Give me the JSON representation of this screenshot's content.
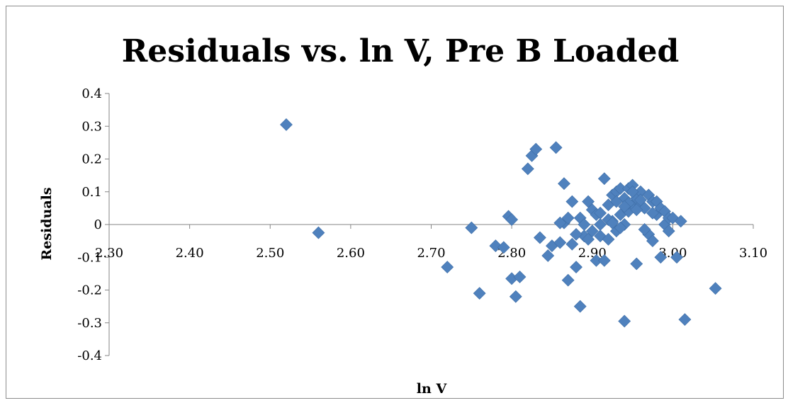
{
  "chart_data": {
    "type": "scatter",
    "title": "Residuals vs. ln V, Pre B Loaded",
    "xlabel": "ln V",
    "ylabel": "Residuals",
    "xlim": [
      2.3,
      3.1
    ],
    "ylim": [
      -0.4,
      0.4
    ],
    "x_ticks": [
      "2.30",
      "2.40",
      "2.50",
      "2.60",
      "2.70",
      "2.80",
      "2.90",
      "3.00",
      "3.10"
    ],
    "y_ticks": [
      "0.4",
      "0.3",
      "0.2",
      "0.1",
      "0",
      "-0.1",
      "-0.2",
      "-0.3",
      "-0.4"
    ],
    "grid": false,
    "legend": "none",
    "marker": "diamond",
    "marker_color": "#4f81bd",
    "series": [
      {
        "x": [
          2.52,
          2.56,
          2.72,
          2.75,
          2.76,
          2.78,
          2.79,
          2.796,
          2.8,
          2.8,
          2.81,
          2.805,
          2.82,
          2.825,
          2.83,
          2.835,
          2.845,
          2.85,
          2.855,
          2.86,
          2.865,
          2.865,
          2.87,
          2.87,
          2.875,
          2.875,
          2.88,
          2.885,
          2.885,
          2.89,
          2.89,
          2.895,
          2.895,
          2.9,
          2.9,
          2.905,
          2.905,
          2.91,
          2.91,
          2.915,
          2.915,
          2.92,
          2.92,
          2.925,
          2.925,
          2.93,
          2.93,
          2.935,
          2.935,
          2.94,
          2.94,
          2.94,
          2.945,
          2.945,
          2.95,
          2.95,
          2.955,
          2.955,
          2.96,
          2.96,
          2.965,
          2.97,
          2.97,
          2.975,
          2.975,
          2.98,
          2.98,
          2.985,
          2.985,
          2.99,
          2.99,
          2.995,
          2.995,
          3.0,
          3.005,
          3.01,
          3.015,
          3.053,
          2.96,
          2.945,
          2.93,
          2.92,
          2.91,
          2.95,
          2.975,
          2.965,
          2.935,
          2.925,
          2.94,
          2.86,
          2.88,
          2.955
        ],
        "y": [
          0.305,
          -0.025,
          -0.13,
          -0.01,
          -0.21,
          -0.065,
          -0.07,
          0.025,
          -0.165,
          0.015,
          -0.16,
          -0.22,
          0.17,
          0.21,
          0.23,
          -0.04,
          -0.095,
          -0.065,
          0.235,
          -0.055,
          0.125,
          0.005,
          -0.17,
          0.02,
          0.07,
          -0.06,
          -0.13,
          -0.25,
          0.02,
          -0.035,
          0.0,
          0.07,
          -0.045,
          0.045,
          -0.02,
          0.03,
          -0.11,
          0.0,
          -0.035,
          0.14,
          -0.11,
          0.06,
          -0.045,
          0.09,
          0.01,
          0.1,
          -0.02,
          0.11,
          0.03,
          0.08,
          0.0,
          -0.295,
          0.11,
          0.04,
          0.12,
          0.06,
          0.08,
          -0.12,
          0.1,
          0.06,
          0.05,
          0.09,
          -0.03,
          0.07,
          -0.05,
          0.07,
          0.03,
          0.05,
          -0.1,
          0.04,
          0.0,
          0.02,
          -0.02,
          0.02,
          -0.1,
          0.01,
          -0.29,
          -0.195,
          0.075,
          0.065,
          0.07,
          0.015,
          0.035,
          0.1,
          0.035,
          -0.015,
          -0.01,
          0.005,
          0.055,
          0.005,
          -0.03,
          0.045
        ]
      }
    ]
  }
}
